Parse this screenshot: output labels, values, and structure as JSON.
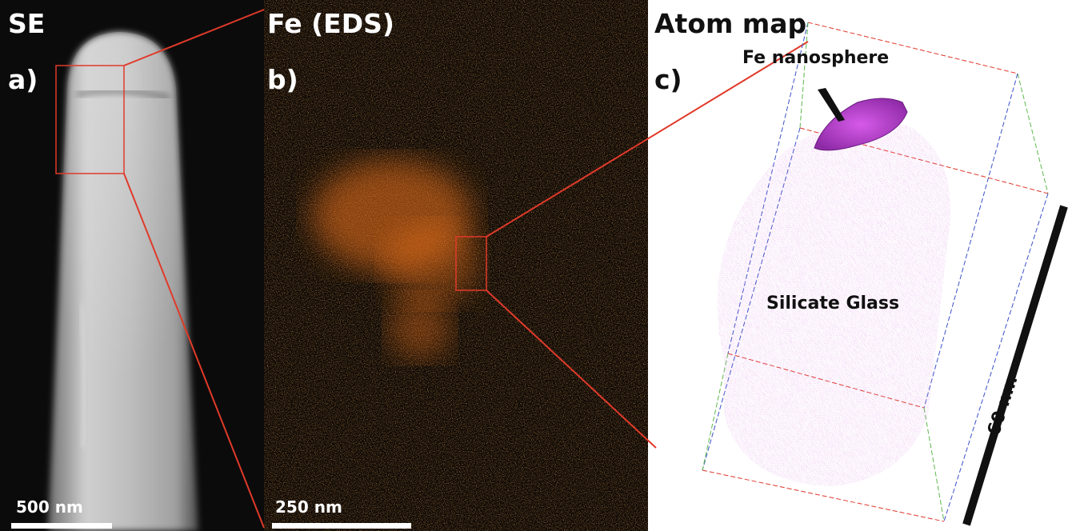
{
  "panel_a": {
    "header": "SE",
    "label": "a)",
    "scale_text": "500 nm"
  },
  "panel_b": {
    "header": "Fe (EDS)",
    "label": "b)",
    "scale_text": "250 nm"
  },
  "panel_c": {
    "header": "Atom map",
    "label": "c)",
    "sphere_label": "Fe nanosphere",
    "matrix_label": "Silicate Glass",
    "scale_text": "60 nm"
  },
  "colors": {
    "zoom_box": "#e03a2a",
    "eds_orange": "#ff7a1e",
    "atom_pink": "#b347c8",
    "sphere_magenta": "#c23fd6",
    "box_blue": "#3a50c8",
    "box_green": "#5cb84a",
    "box_red": "#e0362a"
  }
}
